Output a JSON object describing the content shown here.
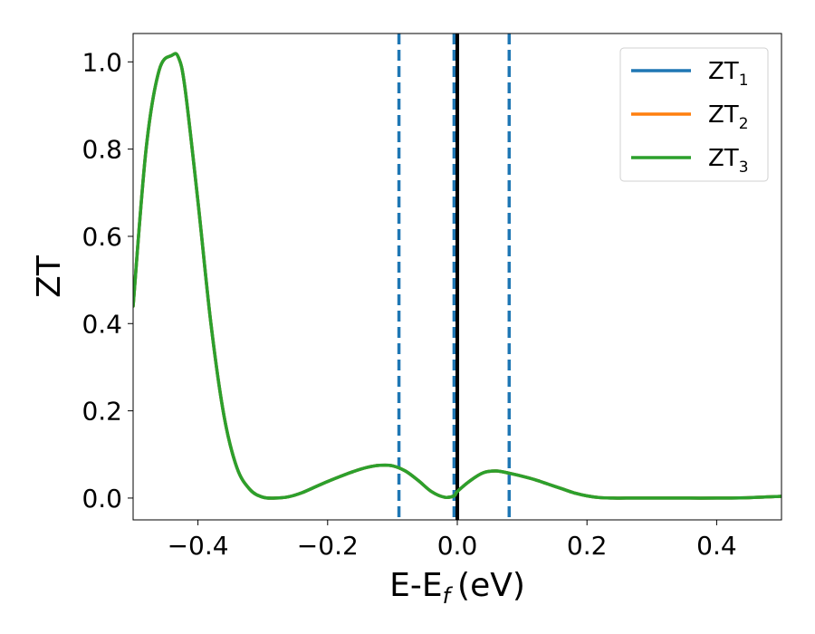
{
  "chart_data": {
    "type": "line",
    "xlabel": "E-E",
    "xlabel_sub": "f",
    "xlabel_unit": "(eV)",
    "ylabel": "ZT",
    "xlim": [
      -0.5,
      0.5
    ],
    "ylim": [
      -0.05,
      1.065
    ],
    "xticks": [
      -0.4,
      -0.2,
      0.0,
      0.2,
      0.4
    ],
    "xtick_labels": [
      "−0.4",
      "−0.2",
      "0.0",
      "0.2",
      "0.4"
    ],
    "yticks": [
      0.0,
      0.2,
      0.4,
      0.6,
      0.8,
      1.0
    ],
    "ytick_labels": [
      "0.0",
      "0.2",
      "0.4",
      "0.6",
      "0.8",
      "1.0"
    ],
    "legend_position": "top-right",
    "series": [
      {
        "name": "ZT",
        "name_sub": "1",
        "color": "#1f77b4",
        "x": [
          -0.5,
          -0.48,
          -0.46,
          -0.44,
          -0.43,
          -0.42,
          -0.4,
          -0.38,
          -0.36,
          -0.34,
          -0.32,
          -0.3,
          -0.28,
          -0.26,
          -0.24,
          -0.22,
          -0.2,
          -0.18,
          -0.16,
          -0.14,
          -0.12,
          -0.1,
          -0.08,
          -0.06,
          -0.04,
          -0.02,
          -0.005,
          0.0,
          0.02,
          0.04,
          0.06,
          0.08,
          0.1,
          0.12,
          0.14,
          0.16,
          0.18,
          0.2,
          0.22,
          0.24,
          0.26,
          0.3,
          0.35,
          0.4,
          0.45,
          0.5
        ],
        "y": [
          0.44,
          0.8,
          0.98,
          1.015,
          1.01,
          0.94,
          0.68,
          0.4,
          0.19,
          0.07,
          0.02,
          0.002,
          0.0,
          0.003,
          0.012,
          0.025,
          0.038,
          0.05,
          0.061,
          0.07,
          0.075,
          0.074,
          0.062,
          0.04,
          0.015,
          0.002,
          0.005,
          0.015,
          0.04,
          0.058,
          0.062,
          0.057,
          0.05,
          0.042,
          0.032,
          0.022,
          0.012,
          0.005,
          0.001,
          0.0,
          0.0,
          0.0,
          0.0,
          0.0,
          0.001,
          0.004
        ]
      },
      {
        "name": "ZT",
        "name_sub": "2",
        "color": "#ff7f0e",
        "x": [
          -0.5,
          -0.48,
          -0.46,
          -0.44,
          -0.43,
          -0.42,
          -0.4,
          -0.38,
          -0.36,
          -0.34,
          -0.32,
          -0.3,
          -0.28,
          -0.26,
          -0.24,
          -0.22,
          -0.2,
          -0.18,
          -0.16,
          -0.14,
          -0.12,
          -0.1,
          -0.08,
          -0.06,
          -0.04,
          -0.02,
          -0.005,
          0.0,
          0.02,
          0.04,
          0.06,
          0.08,
          0.1,
          0.12,
          0.14,
          0.16,
          0.18,
          0.2,
          0.22,
          0.24,
          0.26,
          0.3,
          0.35,
          0.4,
          0.45,
          0.5
        ],
        "y": [
          0.44,
          0.8,
          0.98,
          1.015,
          1.01,
          0.94,
          0.68,
          0.4,
          0.19,
          0.07,
          0.02,
          0.002,
          0.0,
          0.003,
          0.012,
          0.025,
          0.038,
          0.05,
          0.061,
          0.07,
          0.075,
          0.074,
          0.062,
          0.04,
          0.015,
          0.002,
          0.005,
          0.015,
          0.04,
          0.058,
          0.062,
          0.057,
          0.05,
          0.042,
          0.032,
          0.022,
          0.012,
          0.005,
          0.001,
          0.0,
          0.0,
          0.0,
          0.0,
          0.0,
          0.001,
          0.004
        ]
      },
      {
        "name": "ZT",
        "name_sub": "3",
        "color": "#2ca02c",
        "x": [
          -0.5,
          -0.48,
          -0.46,
          -0.44,
          -0.43,
          -0.42,
          -0.4,
          -0.38,
          -0.36,
          -0.34,
          -0.32,
          -0.3,
          -0.28,
          -0.26,
          -0.24,
          -0.22,
          -0.2,
          -0.18,
          -0.16,
          -0.14,
          -0.12,
          -0.1,
          -0.08,
          -0.06,
          -0.04,
          -0.02,
          -0.005,
          0.0,
          0.02,
          0.04,
          0.06,
          0.08,
          0.1,
          0.12,
          0.14,
          0.16,
          0.18,
          0.2,
          0.22,
          0.24,
          0.26,
          0.3,
          0.35,
          0.4,
          0.45,
          0.5
        ],
        "y": [
          0.44,
          0.8,
          0.98,
          1.015,
          1.01,
          0.94,
          0.68,
          0.4,
          0.19,
          0.07,
          0.02,
          0.002,
          0.0,
          0.003,
          0.012,
          0.025,
          0.038,
          0.05,
          0.061,
          0.07,
          0.075,
          0.074,
          0.062,
          0.04,
          0.015,
          0.002,
          0.005,
          0.015,
          0.04,
          0.058,
          0.062,
          0.057,
          0.05,
          0.042,
          0.032,
          0.022,
          0.012,
          0.005,
          0.001,
          0.0,
          0.0,
          0.0,
          0.0,
          0.0,
          0.001,
          0.004
        ]
      }
    ],
    "vlines": [
      {
        "x": -0.09,
        "style": "dashed",
        "color": "#1f77b4"
      },
      {
        "x": -0.005,
        "style": "dashed",
        "color": "#1f77b4"
      },
      {
        "x": 0.08,
        "style": "dashed",
        "color": "#1f77b4"
      },
      {
        "x": 0.0,
        "style": "solid",
        "color": "#000000"
      }
    ]
  }
}
